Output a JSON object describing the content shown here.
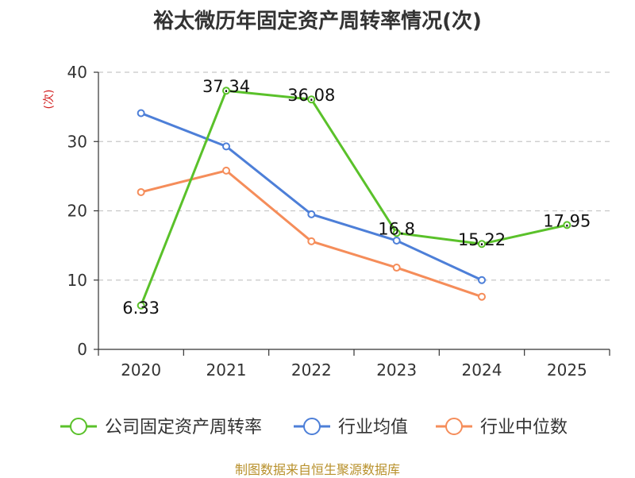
{
  "colors": {
    "company": "#5ac12a",
    "industry_avg": "#4d7fd8",
    "industry_median": "#f58d5a",
    "axis": "#333333",
    "grid": "#c8c8c8",
    "unit": "#d21e1e",
    "source": "#b8912c"
  },
  "chart_data": {
    "type": "line",
    "title": "裕太微历年固定资产周转率情况(次)",
    "ylabel": "(次)",
    "xlabel": "",
    "categories": [
      "2020",
      "2021",
      "2022",
      "2023",
      "2024",
      "2025"
    ],
    "ylim": [
      0,
      40
    ],
    "yticks": [
      0,
      10,
      20,
      30,
      40
    ],
    "grid": true,
    "legend_position": "bottom",
    "series": [
      {
        "name": "公司固定资产周转率",
        "values": [
          6.33,
          37.34,
          36.08,
          16.8,
          15.22,
          17.95
        ],
        "labels": [
          "6.33",
          "37.34",
          "36.08",
          "16.8",
          "15.22",
          "17.95"
        ]
      },
      {
        "name": "行业均值",
        "values": [
          34.1,
          29.3,
          19.5,
          15.7,
          10.0,
          null
        ]
      },
      {
        "name": "行业中位数",
        "values": [
          22.7,
          25.8,
          15.6,
          11.8,
          7.6,
          null
        ]
      }
    ]
  },
  "source_text": "制图数据来自恒生聚源数据库"
}
